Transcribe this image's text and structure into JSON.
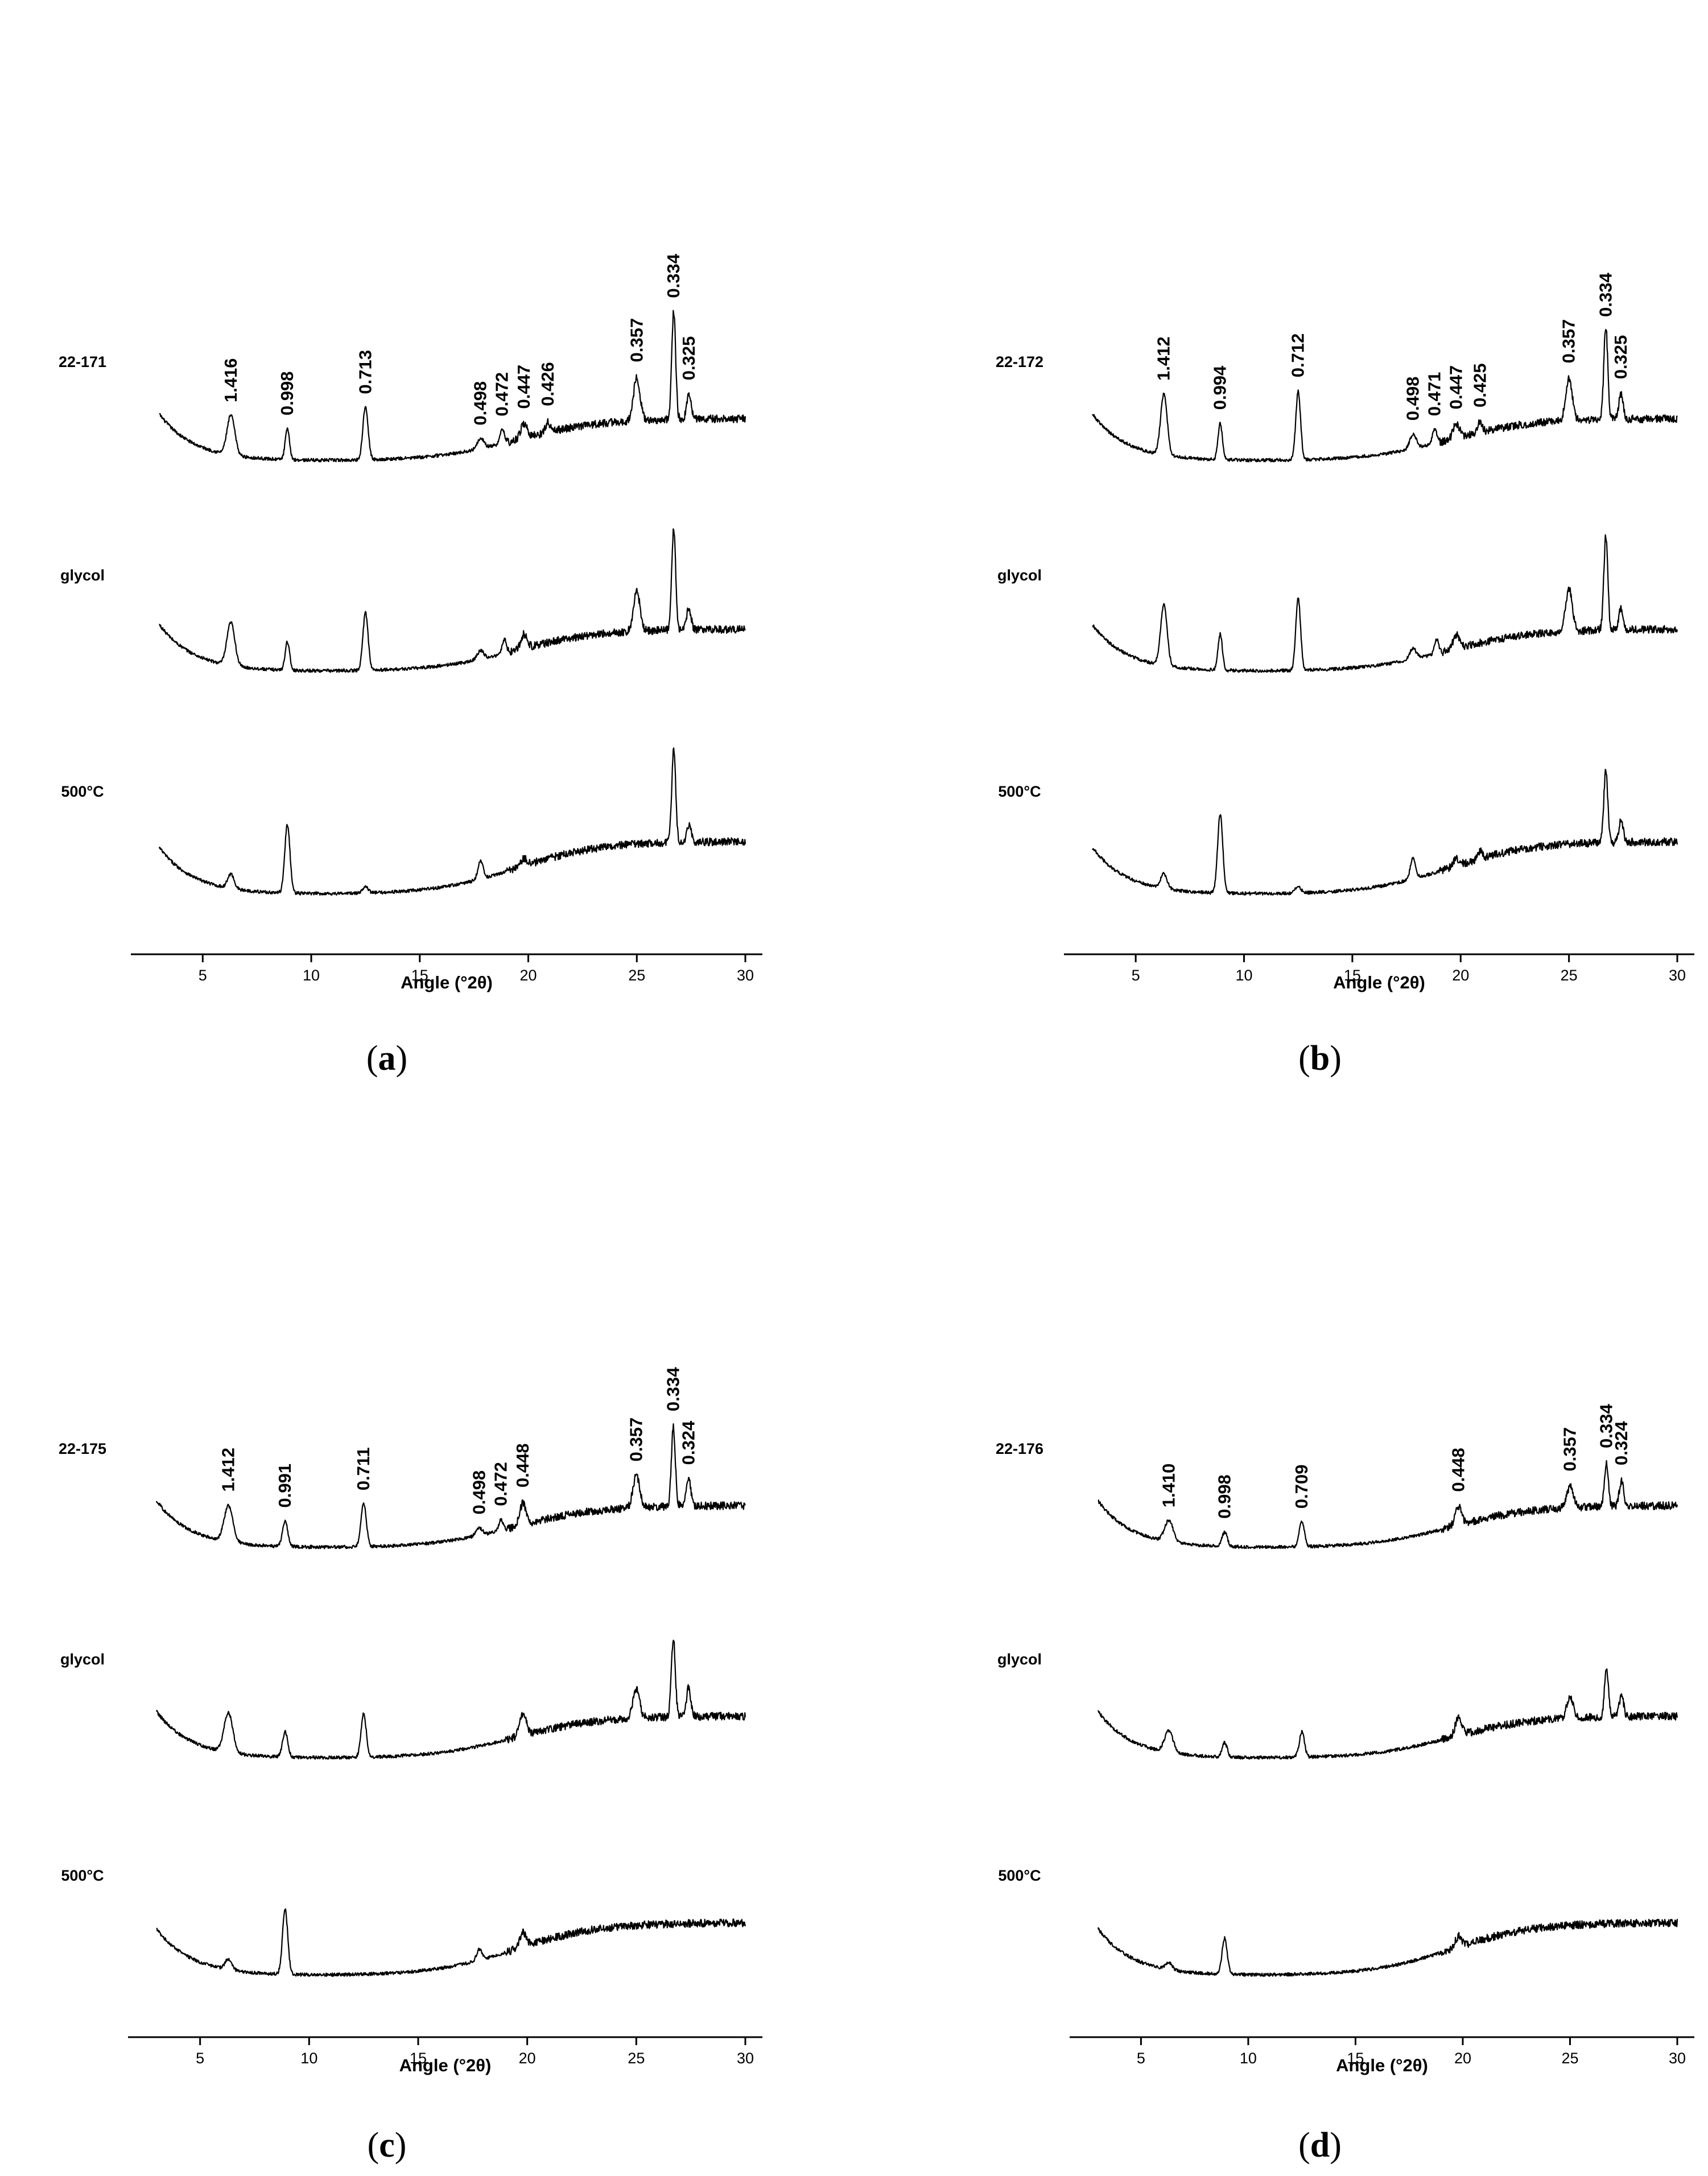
{
  "chart_data": [
    {
      "type": "line",
      "panel_label": "(a)",
      "panel_letter": "a",
      "xlabel": "Angle (°2θ)",
      "xlim": [
        3,
        30
      ],
      "xticks": [
        5,
        10,
        15,
        20,
        25,
        30
      ],
      "series": [
        {
          "name": "22-171",
          "peaks": [
            {
              "x": 6.3,
              "h": 0.55,
              "w": 0.18,
              "label": "1.416"
            },
            {
              "x": 8.9,
              "h": 0.42,
              "w": 0.1,
              "label": "0.998"
            },
            {
              "x": 12.5,
              "h": 0.75,
              "w": 0.12,
              "label": "0.713"
            },
            {
              "x": 17.8,
              "h": 0.15,
              "w": 0.15,
              "label": "0.498"
            },
            {
              "x": 18.8,
              "h": 0.2,
              "w": 0.1,
              "label": "0.472"
            },
            {
              "x": 19.8,
              "h": 0.2,
              "w": 0.15,
              "label": "0.447"
            },
            {
              "x": 20.9,
              "h": 0.15,
              "w": 0.1,
              "label": "0.426"
            },
            {
              "x": 25.0,
              "h": 0.6,
              "w": 0.15,
              "label": "0.357"
            },
            {
              "x": 26.7,
              "h": 1.5,
              "w": 0.09,
              "label": "0.334"
            },
            {
              "x": 27.4,
              "h": 0.35,
              "w": 0.1,
              "label": "0.325"
            }
          ]
        },
        {
          "name": "glycol",
          "peaks": [
            {
              "x": 6.3,
              "h": 0.6,
              "w": 0.18
            },
            {
              "x": 8.9,
              "h": 0.4,
              "w": 0.1
            },
            {
              "x": 12.5,
              "h": 0.8,
              "w": 0.12
            },
            {
              "x": 17.8,
              "h": 0.12,
              "w": 0.15
            },
            {
              "x": 18.9,
              "h": 0.2,
              "w": 0.1
            },
            {
              "x": 19.8,
              "h": 0.2,
              "w": 0.15
            },
            {
              "x": 25.0,
              "h": 0.55,
              "w": 0.15
            },
            {
              "x": 26.7,
              "h": 1.4,
              "w": 0.09
            },
            {
              "x": 27.4,
              "h": 0.3,
              "w": 0.1
            }
          ]
        },
        {
          "name": "500°C",
          "peaks": [
            {
              "x": 6.3,
              "h": 0.2,
              "w": 0.15
            },
            {
              "x": 8.9,
              "h": 0.95,
              "w": 0.12
            },
            {
              "x": 12.5,
              "h": 0.1,
              "w": 0.12
            },
            {
              "x": 17.8,
              "h": 0.25,
              "w": 0.12
            },
            {
              "x": 19.8,
              "h": 0.1,
              "w": 0.15
            },
            {
              "x": 26.7,
              "h": 1.3,
              "w": 0.09
            },
            {
              "x": 27.4,
              "h": 0.25,
              "w": 0.1
            }
          ]
        }
      ]
    },
    {
      "type": "line",
      "panel_label": "(b)",
      "panel_letter": "b",
      "xlabel": "Angle (°2θ)",
      "xlim": [
        3,
        30
      ],
      "xticks": [
        5,
        10,
        15,
        20,
        25,
        30
      ],
      "series": [
        {
          "name": "22-172",
          "peaks": [
            {
              "x": 6.3,
              "h": 0.85,
              "w": 0.15,
              "label": "1.412"
            },
            {
              "x": 8.9,
              "h": 0.5,
              "w": 0.1,
              "label": "0.994"
            },
            {
              "x": 12.5,
              "h": 0.95,
              "w": 0.11,
              "label": "0.712"
            },
            {
              "x": 17.8,
              "h": 0.2,
              "w": 0.15,
              "label": "0.498"
            },
            {
              "x": 18.8,
              "h": 0.2,
              "w": 0.1,
              "label": "0.471"
            },
            {
              "x": 19.8,
              "h": 0.2,
              "w": 0.15,
              "label": "0.447"
            },
            {
              "x": 20.9,
              "h": 0.15,
              "w": 0.1,
              "label": "0.425"
            },
            {
              "x": 25.0,
              "h": 0.6,
              "w": 0.15,
              "label": "0.357"
            },
            {
              "x": 26.7,
              "h": 1.3,
              "w": 0.09,
              "label": "0.334"
            },
            {
              "x": 27.4,
              "h": 0.35,
              "w": 0.1,
              "label": "0.325"
            }
          ]
        },
        {
          "name": "glycol",
          "peaks": [
            {
              "x": 6.3,
              "h": 0.85,
              "w": 0.15
            },
            {
              "x": 8.9,
              "h": 0.5,
              "w": 0.1
            },
            {
              "x": 12.5,
              "h": 1.0,
              "w": 0.11
            },
            {
              "x": 17.8,
              "h": 0.15,
              "w": 0.15
            },
            {
              "x": 18.9,
              "h": 0.2,
              "w": 0.1
            },
            {
              "x": 19.8,
              "h": 0.2,
              "w": 0.15
            },
            {
              "x": 25.0,
              "h": 0.6,
              "w": 0.15
            },
            {
              "x": 26.7,
              "h": 1.3,
              "w": 0.09
            },
            {
              "x": 27.4,
              "h": 0.3,
              "w": 0.1
            }
          ]
        },
        {
          "name": "500°C",
          "peaks": [
            {
              "x": 6.3,
              "h": 0.2,
              "w": 0.15
            },
            {
              "x": 8.9,
              "h": 1.1,
              "w": 0.12
            },
            {
              "x": 12.5,
              "h": 0.1,
              "w": 0.12
            },
            {
              "x": 17.8,
              "h": 0.3,
              "w": 0.12
            },
            {
              "x": 19.8,
              "h": 0.1,
              "w": 0.15
            },
            {
              "x": 20.9,
              "h": 0.1,
              "w": 0.1
            },
            {
              "x": 26.7,
              "h": 1.0,
              "w": 0.09
            },
            {
              "x": 27.4,
              "h": 0.3,
              "w": 0.1
            }
          ]
        }
      ]
    },
    {
      "type": "line",
      "panel_label": "(c)",
      "panel_letter": "c",
      "xlabel": "Angle (°2θ)",
      "xlim": [
        3,
        30
      ],
      "xticks": [
        5,
        10,
        15,
        20,
        25,
        30
      ],
      "series": [
        {
          "name": "22-175",
          "peaks": [
            {
              "x": 6.3,
              "h": 0.5,
              "w": 0.2,
              "label": "1.412"
            },
            {
              "x": 8.9,
              "h": 0.35,
              "w": 0.12,
              "label": "0.991"
            },
            {
              "x": 12.5,
              "h": 0.6,
              "w": 0.12,
              "label": "0.711"
            },
            {
              "x": 17.8,
              "h": 0.1,
              "w": 0.15,
              "label": "0.498"
            },
            {
              "x": 18.8,
              "h": 0.15,
              "w": 0.1,
              "label": "0.472"
            },
            {
              "x": 19.8,
              "h": 0.3,
              "w": 0.15,
              "label": "0.448"
            },
            {
              "x": 25.0,
              "h": 0.45,
              "w": 0.15,
              "label": "0.357"
            },
            {
              "x": 26.7,
              "h": 1.1,
              "w": 0.09,
              "label": "0.334"
            },
            {
              "x": 27.4,
              "h": 0.4,
              "w": 0.1,
              "label": "0.324"
            }
          ]
        },
        {
          "name": "glycol",
          "peaks": [
            {
              "x": 6.3,
              "h": 0.55,
              "w": 0.2
            },
            {
              "x": 8.9,
              "h": 0.35,
              "w": 0.12
            },
            {
              "x": 12.5,
              "h": 0.6,
              "w": 0.12
            },
            {
              "x": 19.8,
              "h": 0.3,
              "w": 0.15
            },
            {
              "x": 25.0,
              "h": 0.4,
              "w": 0.15
            },
            {
              "x": 26.7,
              "h": 1.1,
              "w": 0.09
            },
            {
              "x": 27.4,
              "h": 0.4,
              "w": 0.1
            }
          ]
        },
        {
          "name": "500°C",
          "peaks": [
            {
              "x": 6.3,
              "h": 0.15,
              "w": 0.15
            },
            {
              "x": 8.9,
              "h": 0.9,
              "w": 0.12
            },
            {
              "x": 17.8,
              "h": 0.15,
              "w": 0.12
            },
            {
              "x": 19.8,
              "h": 0.2,
              "w": 0.15
            }
          ]
        }
      ]
    },
    {
      "type": "line",
      "panel_label": "(d)",
      "panel_letter": "d",
      "xlabel": "Angle (°2θ)",
      "xlim": [
        3,
        30
      ],
      "xticks": [
        5,
        10,
        15,
        20,
        25,
        30
      ],
      "series": [
        {
          "name": "22-176",
          "peaks": [
            {
              "x": 6.3,
              "h": 0.3,
              "w": 0.2,
              "label": "1.410"
            },
            {
              "x": 8.9,
              "h": 0.2,
              "w": 0.12,
              "label": "0.998"
            },
            {
              "x": 12.5,
              "h": 0.35,
              "w": 0.12,
              "label": "0.709"
            },
            {
              "x": 19.8,
              "h": 0.25,
              "w": 0.15,
              "label": "0.448"
            },
            {
              "x": 25.0,
              "h": 0.3,
              "w": 0.15,
              "label": "0.357"
            },
            {
              "x": 26.7,
              "h": 0.6,
              "w": 0.09,
              "label": "0.334"
            },
            {
              "x": 27.4,
              "h": 0.35,
              "w": 0.1,
              "label": "0.324"
            }
          ]
        },
        {
          "name": "glycol",
          "peaks": [
            {
              "x": 6.3,
              "h": 0.3,
              "w": 0.2
            },
            {
              "x": 8.9,
              "h": 0.2,
              "w": 0.12
            },
            {
              "x": 12.5,
              "h": 0.35,
              "w": 0.12
            },
            {
              "x": 19.8,
              "h": 0.25,
              "w": 0.15
            },
            {
              "x": 25.0,
              "h": 0.3,
              "w": 0.15
            },
            {
              "x": 26.7,
              "h": 0.7,
              "w": 0.09
            },
            {
              "x": 27.4,
              "h": 0.3,
              "w": 0.1
            }
          ]
        },
        {
          "name": "500°C",
          "peaks": [
            {
              "x": 6.3,
              "h": 0.1,
              "w": 0.15
            },
            {
              "x": 8.9,
              "h": 0.5,
              "w": 0.12
            },
            {
              "x": 19.8,
              "h": 0.15,
              "w": 0.15
            }
          ]
        }
      ]
    }
  ]
}
